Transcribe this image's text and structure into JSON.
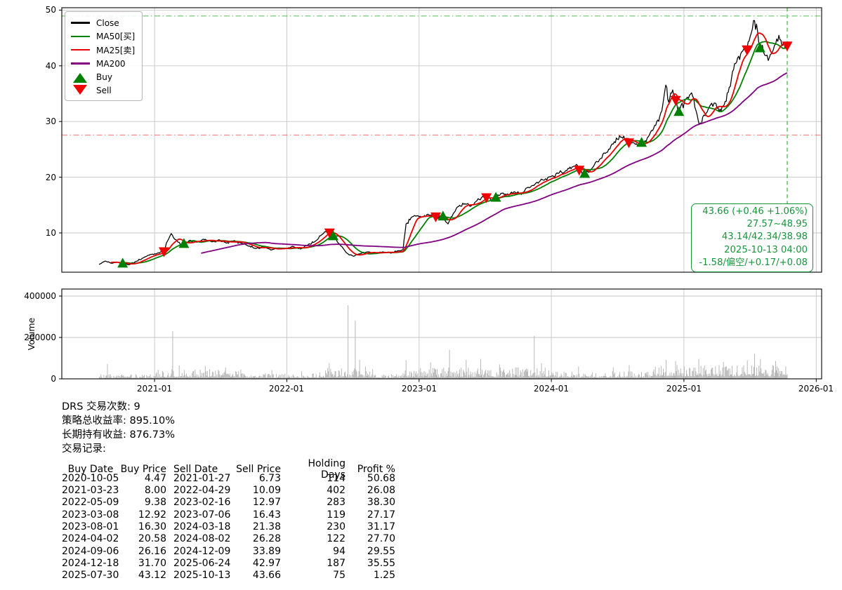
{
  "legend": {
    "items": [
      {
        "label": "Close",
        "swatch": "line",
        "color": "#000000"
      },
      {
        "label": "MA50[买]",
        "swatch": "line",
        "color": "#008000"
      },
      {
        "label": "MA25[卖]",
        "swatch": "line",
        "color": "#e80000"
      },
      {
        "label": "MA200",
        "swatch": "line",
        "color": "#800080"
      },
      {
        "label": "Buy",
        "swatch": "triangle-up",
        "color": "#008000"
      },
      {
        "label": "Sell",
        "swatch": "triangle-down",
        "color": "#f00000"
      }
    ]
  },
  "annotation": {
    "color": "#18953c",
    "lines": [
      "43.66 (+0.46 +1.06%)",
      "27.57~48.95",
      "43.14/42.34/38.98",
      "2025-10-13 04:00",
      "-1.58/偏空/+0.17/+0.08"
    ]
  },
  "summary": {
    "lines": [
      "DRS 交易次数: 9",
      "策略总收益率: 895.10%",
      "长期持有收益: 876.73%",
      "交易记录:"
    ]
  },
  "table": {
    "headers": [
      "Buy Date",
      "Buy Price",
      "Sell Date",
      "Sell Price",
      "Holding Days",
      "Profit %"
    ]
  },
  "chart_data": {
    "type": "line",
    "x_range": [
      "2020-04-20",
      "2026-01-16"
    ],
    "x_ticks": [
      "2021-01",
      "2022-01",
      "2023-01",
      "2024-01",
      "2025-01",
      "2026-01"
    ],
    "price_axis": {
      "ticks": [
        10,
        20,
        30,
        40,
        50
      ],
      "range": [
        2.95,
        50.43
      ]
    },
    "volume_axis": {
      "ticks": [
        0,
        200000,
        400000
      ],
      "range": [
        0,
        434000
      ],
      "label": "Volume"
    },
    "grid": true,
    "colors": {
      "close": "#000000",
      "ma50": "#008000",
      "ma25": "#e80000",
      "ma200": "#800080",
      "buy": "#008000",
      "sell": "#f00000",
      "grid": "#c6c6c6",
      "volume_bar": "#b8b8b8",
      "hline_high": "#00a000",
      "hline_low": "#ff2a2a",
      "vline": "#2aa02a"
    },
    "hlines": [
      {
        "y": 48.95,
        "color": "#00a000",
        "style": "dashdot",
        "opacity": 0.6
      },
      {
        "y": 27.57,
        "color": "#ff2a2a",
        "style": "dashdot",
        "opacity": 0.55
      }
    ],
    "vline": {
      "x": "2025-10-13",
      "color": "#2aa02a",
      "style": "dashed",
      "opacity": 0.8
    },
    "close_anchors": [
      [
        "2020-08-01",
        4.35
      ],
      [
        "2020-08-18",
        4.95
      ],
      [
        "2020-09-05",
        4.55
      ],
      [
        "2020-09-20",
        4.75
      ],
      [
        "2020-10-05",
        4.47
      ],
      [
        "2020-10-22",
        4.3
      ],
      [
        "2020-11-10",
        4.85
      ],
      [
        "2020-12-01",
        5.55
      ],
      [
        "2020-12-20",
        6.1
      ],
      [
        "2021-01-08",
        6.35
      ],
      [
        "2021-01-27",
        6.73
      ],
      [
        "2021-02-06",
        8.6
      ],
      [
        "2021-02-16",
        9.9
      ],
      [
        "2021-02-26",
        8.8
      ],
      [
        "2021-03-10",
        8.3
      ],
      [
        "2021-03-19",
        7.55
      ],
      [
        "2021-03-23",
        8.0
      ],
      [
        "2021-04-08",
        8.65
      ],
      [
        "2021-04-28",
        8.3
      ],
      [
        "2021-05-18",
        8.85
      ],
      [
        "2021-06-08",
        8.4
      ],
      [
        "2021-06-28",
        8.75
      ],
      [
        "2021-07-18",
        8.2
      ],
      [
        "2021-08-08",
        8.6
      ],
      [
        "2021-08-28",
        8.15
      ],
      [
        "2021-09-18",
        7.65
      ],
      [
        "2021-10-08",
        7.2
      ],
      [
        "2021-10-28",
        7.55
      ],
      [
        "2021-11-18",
        6.95
      ],
      [
        "2021-12-08",
        7.3
      ],
      [
        "2021-12-28",
        7.15
      ],
      [
        "2022-01-18",
        7.6
      ],
      [
        "2022-02-08",
        7.1
      ],
      [
        "2022-03-01",
        7.9
      ],
      [
        "2022-03-21",
        8.55
      ],
      [
        "2022-04-10",
        9.8
      ],
      [
        "2022-04-24",
        10.65
      ],
      [
        "2022-04-29",
        10.09
      ],
      [
        "2022-05-09",
        9.38
      ],
      [
        "2022-05-25",
        8.1
      ],
      [
        "2022-06-15",
        6.4
      ],
      [
        "2022-07-05",
        5.8
      ],
      [
        "2022-07-25",
        6.35
      ],
      [
        "2022-08-15",
        6.6
      ],
      [
        "2022-09-05",
        6.3
      ],
      [
        "2022-09-25",
        6.6
      ],
      [
        "2022-10-15",
        6.4
      ],
      [
        "2022-11-05",
        6.8
      ],
      [
        "2022-11-18",
        7.05
      ],
      [
        "2022-11-26",
        11.6
      ],
      [
        "2022-12-10",
        12.7
      ],
      [
        "2022-12-26",
        13.1
      ],
      [
        "2023-01-10",
        12.85
      ],
      [
        "2023-01-25",
        13.35
      ],
      [
        "2023-02-10",
        13.05
      ],
      [
        "2023-02-16",
        12.97
      ],
      [
        "2023-03-01",
        12.6
      ],
      [
        "2023-03-08",
        12.92
      ],
      [
        "2023-03-22",
        11.55
      ],
      [
        "2023-04-05",
        13.4
      ],
      [
        "2023-04-20",
        14.8
      ],
      [
        "2023-05-10",
        15.2
      ],
      [
        "2023-05-25",
        14.9
      ],
      [
        "2023-06-10",
        15.8
      ],
      [
        "2023-06-25",
        16.6
      ],
      [
        "2023-07-06",
        16.43
      ],
      [
        "2023-07-20",
        15.9
      ],
      [
        "2023-08-01",
        16.3
      ],
      [
        "2023-08-18",
        17.2
      ],
      [
        "2023-09-05",
        16.8
      ],
      [
        "2023-09-22",
        17.4
      ],
      [
        "2023-10-10",
        17.0
      ],
      [
        "2023-11-01",
        18.2
      ],
      [
        "2023-11-20",
        19.0
      ],
      [
        "2023-12-10",
        19.4
      ],
      [
        "2024-01-01",
        20.2
      ],
      [
        "2024-01-20",
        20.7
      ],
      [
        "2024-02-10",
        21.2
      ],
      [
        "2024-03-01",
        21.9
      ],
      [
        "2024-03-10",
        22.3
      ],
      [
        "2024-03-18",
        21.38
      ],
      [
        "2024-03-27",
        20.4
      ],
      [
        "2024-04-02",
        20.58
      ],
      [
        "2024-04-20",
        21.4
      ],
      [
        "2024-05-10",
        22.9
      ],
      [
        "2024-06-01",
        24.4
      ],
      [
        "2024-06-20",
        26.0
      ],
      [
        "2024-07-10",
        27.3
      ],
      [
        "2024-07-25",
        26.9
      ],
      [
        "2024-08-02",
        26.28
      ],
      [
        "2024-08-20",
        25.8
      ],
      [
        "2024-09-06",
        26.16
      ],
      [
        "2024-09-25",
        27.3
      ],
      [
        "2024-10-15",
        29.3
      ],
      [
        "2024-11-01",
        32.0
      ],
      [
        "2024-11-12",
        36.4
      ],
      [
        "2024-11-20",
        33.3
      ],
      [
        "2024-12-01",
        35.6
      ],
      [
        "2024-12-09",
        33.89
      ],
      [
        "2024-12-18",
        31.7
      ],
      [
        "2025-01-05",
        33.8
      ],
      [
        "2025-01-22",
        35.0
      ],
      [
        "2025-02-03",
        32.0
      ],
      [
        "2025-02-12",
        29.6
      ],
      [
        "2025-02-25",
        31.0
      ],
      [
        "2025-03-12",
        32.6
      ],
      [
        "2025-03-25",
        33.4
      ],
      [
        "2025-04-08",
        31.8
      ],
      [
        "2025-04-22",
        33.0
      ],
      [
        "2025-05-06",
        36.0
      ],
      [
        "2025-05-18",
        39.5
      ],
      [
        "2025-06-01",
        41.5
      ],
      [
        "2025-06-12",
        42.8
      ],
      [
        "2025-06-24",
        42.97
      ],
      [
        "2025-07-06",
        45.8
      ],
      [
        "2025-07-15",
        48.2
      ],
      [
        "2025-07-23",
        46.3
      ],
      [
        "2025-07-30",
        43.12
      ],
      [
        "2025-08-12",
        41.8
      ],
      [
        "2025-08-25",
        41.3
      ],
      [
        "2025-09-08",
        43.6
      ],
      [
        "2025-09-20",
        45.3
      ],
      [
        "2025-10-01",
        43.8
      ],
      [
        "2025-10-13",
        43.66
      ]
    ],
    "moving_averages": [
      {
        "name": "MA50[买]",
        "color": "#008000",
        "window_days": 50
      },
      {
        "name": "MA25[卖]",
        "color": "#e80000",
        "window_days": 25
      },
      {
        "name": "MA200",
        "color": "#800080",
        "window_days": 200
      }
    ],
    "trades": [
      {
        "buy_date": "2020-10-05",
        "buy_price": "4.47",
        "sell_date": "2021-01-27",
        "sell_price": "6.73",
        "holding_days": "114",
        "profit_pct": "50.68"
      },
      {
        "buy_date": "2021-03-23",
        "buy_price": "8.00",
        "sell_date": "2022-04-29",
        "sell_price": "10.09",
        "holding_days": "402",
        "profit_pct": "26.08"
      },
      {
        "buy_date": "2022-05-09",
        "buy_price": "9.38",
        "sell_date": "2023-02-16",
        "sell_price": "12.97",
        "holding_days": "283",
        "profit_pct": "38.30"
      },
      {
        "buy_date": "2023-03-08",
        "buy_price": "12.92",
        "sell_date": "2023-07-06",
        "sell_price": "16.43",
        "holding_days": "119",
        "profit_pct": "27.17"
      },
      {
        "buy_date": "2023-08-01",
        "buy_price": "16.30",
        "sell_date": "2024-03-18",
        "sell_price": "21.38",
        "holding_days": "230",
        "profit_pct": "31.17"
      },
      {
        "buy_date": "2024-04-02",
        "buy_price": "20.58",
        "sell_date": "2024-08-02",
        "sell_price": "26.28",
        "holding_days": "122",
        "profit_pct": "27.70"
      },
      {
        "buy_date": "2024-09-06",
        "buy_price": "26.16",
        "sell_date": "2024-12-09",
        "sell_price": "33.89",
        "holding_days": "94",
        "profit_pct": "29.55"
      },
      {
        "buy_date": "2024-12-18",
        "buy_price": "31.70",
        "sell_date": "2025-06-24",
        "sell_price": "42.97",
        "holding_days": "187",
        "profit_pct": "35.55"
      },
      {
        "buy_date": "2025-07-30",
        "buy_price": "43.12",
        "sell_date": "2025-10-13",
        "sell_price": "43.66",
        "holding_days": "75",
        "profit_pct": "1.25"
      }
    ],
    "volume_profile": {
      "segments": [
        {
          "from": "2020-08-01",
          "to": "2020-12-31",
          "base": 4000,
          "var": 20000
        },
        {
          "from": "2021-01-01",
          "to": "2021-08-31",
          "base": 8000,
          "var": 40000
        },
        {
          "from": "2021-09-01",
          "to": "2022-03-31",
          "base": 5000,
          "var": 22000
        },
        {
          "from": "2022-04-01",
          "to": "2022-08-31",
          "base": 8000,
          "var": 45000
        },
        {
          "from": "2022-09-01",
          "to": "2022-11-15",
          "base": 5000,
          "var": 18000
        },
        {
          "from": "2022-11-16",
          "to": "2023-12-31",
          "base": 9000,
          "var": 48000
        },
        {
          "from": "2024-01-01",
          "to": "2024-09-30",
          "base": 7000,
          "var": 30000
        },
        {
          "from": "2024-10-01",
          "to": "2025-10-13",
          "base": 12000,
          "var": 55000
        }
      ],
      "spikes": [
        [
          "2020-08-23",
          72000
        ],
        [
          "2021-02-19",
          230000
        ],
        [
          "2021-03-10",
          65000
        ],
        [
          "2021-05-20",
          62000
        ],
        [
          "2021-07-15",
          55000
        ],
        [
          "2021-11-20",
          42000
        ],
        [
          "2022-02-10",
          36000
        ],
        [
          "2022-04-27",
          76000
        ],
        [
          "2022-06-18",
          356000
        ],
        [
          "2022-07-08",
          282000
        ],
        [
          "2022-07-20",
          92000
        ],
        [
          "2022-08-05",
          60000
        ],
        [
          "2022-11-25",
          90000
        ],
        [
          "2023-02-01",
          80000
        ],
        [
          "2023-03-25",
          140000
        ],
        [
          "2023-05-10",
          92000
        ],
        [
          "2023-06-20",
          96000
        ],
        [
          "2023-08-10",
          70000
        ],
        [
          "2023-11-14",
          208000
        ],
        [
          "2023-12-05",
          76000
        ],
        [
          "2024-03-15",
          60000
        ],
        [
          "2024-06-20",
          56000
        ],
        [
          "2024-08-02",
          66000
        ],
        [
          "2024-11-12",
          92000
        ],
        [
          "2024-12-09",
          86000
        ],
        [
          "2025-02-10",
          96000
        ],
        [
          "2025-04-20",
          82000
        ],
        [
          "2025-06-24",
          90000
        ],
        [
          "2025-07-15",
          120000
        ],
        [
          "2025-07-30",
          96000
        ],
        [
          "2025-09-10",
          86000
        ]
      ]
    }
  }
}
